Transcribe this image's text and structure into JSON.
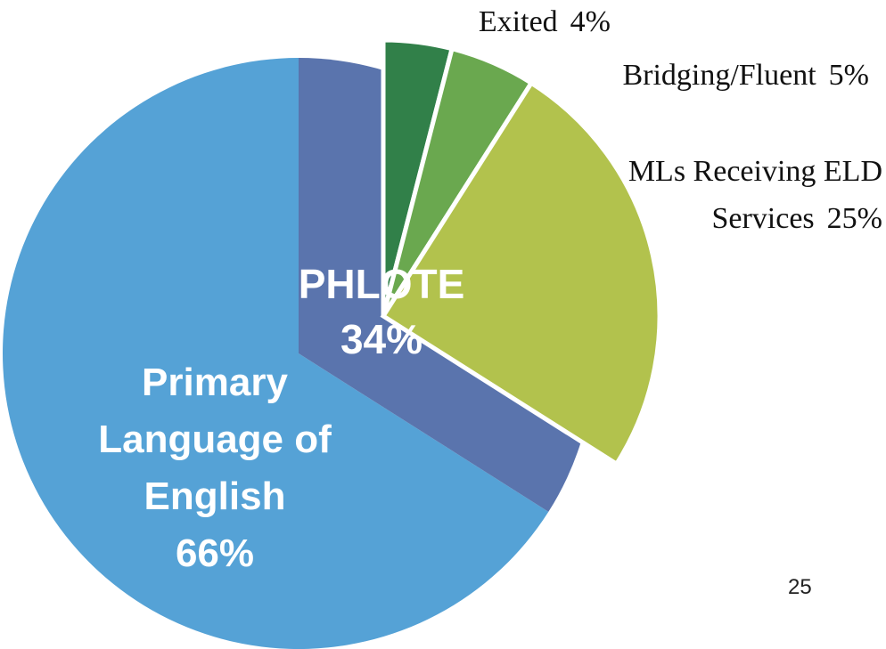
{
  "chart_data": [
    {
      "type": "pie",
      "categories": [
        "Primary Language of English",
        "PHLOTE"
      ],
      "values": [
        66,
        34
      ],
      "value_labels": [
        "66%",
        "34%"
      ],
      "colors": [
        "#55a2d6",
        "#5a74ad"
      ]
    },
    {
      "type": "pie",
      "categories": [
        "Exited",
        "Bridging/Fluent",
        "MLs Receiving ELD Services"
      ],
      "values": [
        4,
        5,
        25
      ],
      "value_labels": [
        "4%",
        "5%",
        "25%"
      ],
      "colors": [
        "#318049",
        "#6aa84f",
        "#b2c24d"
      ]
    }
  ],
  "page_number": "25"
}
